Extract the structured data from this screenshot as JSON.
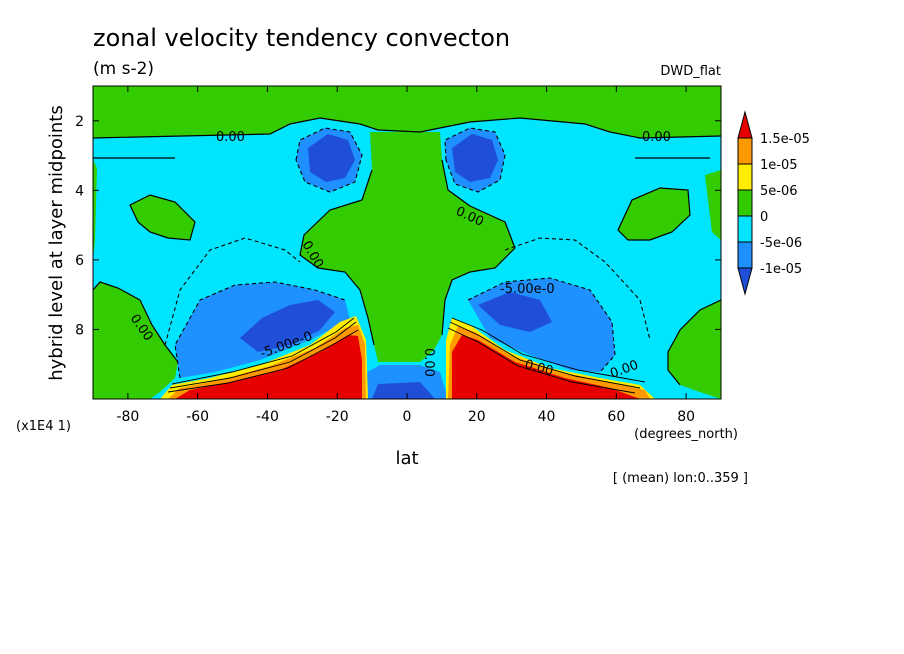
{
  "chart_data": {
    "type": "heatmap",
    "title": "zonal velocity tendency convecton",
    "units": "(m s-2)",
    "dataset_label": "DWD_flat",
    "xlabel": "lat",
    "xunits": "(degrees_north)",
    "ylabel": "hybrid level at layer midpoints",
    "yscale_note": "(x1E4 1)",
    "footnote": "[ (mean) lon:0..359 ]",
    "xlim": [
      -90,
      90
    ],
    "ylim": [
      10,
      1
    ],
    "x_ticks": [
      "-80",
      "-60",
      "-40",
      "-20",
      "0",
      "20",
      "40",
      "60",
      "80"
    ],
    "x_tick_values": [
      -80,
      -60,
      -40,
      -20,
      0,
      20,
      40,
      60,
      80
    ],
    "y_ticks": [
      "2",
      "4",
      "6",
      "8"
    ],
    "y_tick_values": [
      2,
      4,
      6,
      8
    ],
    "colorbar": {
      "labels": [
        "1.5e-05",
        "1e-05",
        "5e-06",
        "0",
        "-5e-06",
        "-1e-05"
      ],
      "colors": [
        "#e60000",
        "#ff9900",
        "#ffee00",
        "#33cc00",
        "#00e5ff",
        "#1e90ff",
        "#1f4ed8"
      ]
    },
    "contour_labels": [
      "0.00",
      "0.00",
      "0.00",
      "0.00",
      "0.00",
      "-5.00e-0",
      "-5.00e-0",
      "0.00",
      "0.00",
      "0.00"
    ]
  }
}
